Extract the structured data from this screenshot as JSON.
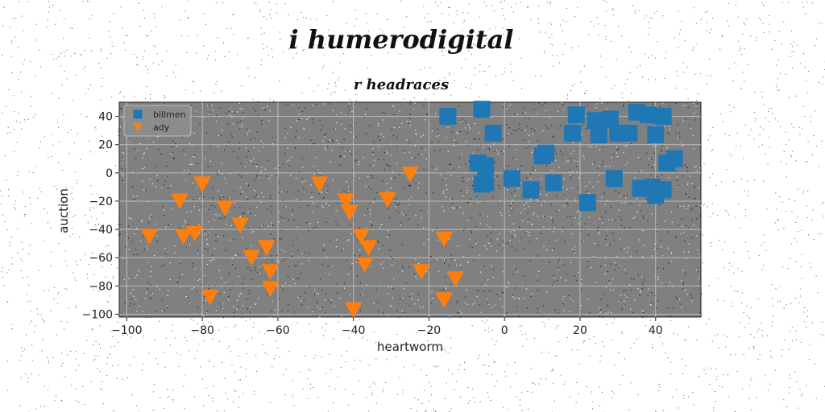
{
  "chart_data": {
    "type": "scatter",
    "title": "i humerodigital",
    "subtitle": "r headraces",
    "xlabel": "heartworm",
    "ylabel": "auction",
    "xlim": [
      -102,
      52
    ],
    "ylim": [
      -102,
      50
    ],
    "xticks": [
      -100,
      -80,
      -60,
      -40,
      -20,
      0,
      20,
      40
    ],
    "yticks": [
      -100,
      -80,
      -60,
      -40,
      -20,
      0,
      20,
      40
    ],
    "grid": true,
    "legend_position": "top-left",
    "background_color": "#808080",
    "series": [
      {
        "name": "billmen",
        "marker": "square",
        "color": "#1f77b4",
        "points": [
          [
            -15,
            40
          ],
          [
            -6,
            45
          ],
          [
            -3,
            28
          ],
          [
            -7,
            7
          ],
          [
            -5,
            5
          ],
          [
            -6,
            -8
          ],
          [
            -5,
            -7
          ],
          [
            2,
            -4
          ],
          [
            7,
            -12
          ],
          [
            10,
            12
          ],
          [
            11,
            14
          ],
          [
            13,
            -7
          ],
          [
            18,
            28
          ],
          [
            19,
            41
          ],
          [
            24,
            37
          ],
          [
            25,
            27
          ],
          [
            28,
            38
          ],
          [
            30,
            28
          ],
          [
            33,
            28
          ],
          [
            35,
            43
          ],
          [
            38,
            41
          ],
          [
            40,
            27
          ],
          [
            42,
            40
          ],
          [
            22,
            -21
          ],
          [
            29,
            -4
          ],
          [
            36,
            -11
          ],
          [
            39,
            -10
          ],
          [
            40,
            -16
          ],
          [
            42,
            -12
          ],
          [
            43,
            7
          ],
          [
            45,
            10
          ]
        ]
      },
      {
        "name": "ady",
        "marker": "triangle-down",
        "color": "#ff7f0e",
        "points": [
          [
            -94,
            -45
          ],
          [
            -86,
            -20
          ],
          [
            -85,
            -45
          ],
          [
            -82,
            -43
          ],
          [
            -80,
            -8
          ],
          [
            -78,
            -88
          ],
          [
            -74,
            -25
          ],
          [
            -70,
            -37
          ],
          [
            -67,
            -60
          ],
          [
            -63,
            -53
          ],
          [
            -62,
            -70
          ],
          [
            -62,
            -82
          ],
          [
            -49,
            -8
          ],
          [
            -42,
            -20
          ],
          [
            -41,
            -28
          ],
          [
            -40,
            -97
          ],
          [
            -38,
            -45
          ],
          [
            -37,
            -65
          ],
          [
            -36,
            -53
          ],
          [
            -31,
            -19
          ],
          [
            -25,
            -1
          ],
          [
            -22,
            -70
          ],
          [
            -16,
            -47
          ],
          [
            -16,
            -90
          ],
          [
            -13,
            -75
          ]
        ]
      }
    ]
  }
}
